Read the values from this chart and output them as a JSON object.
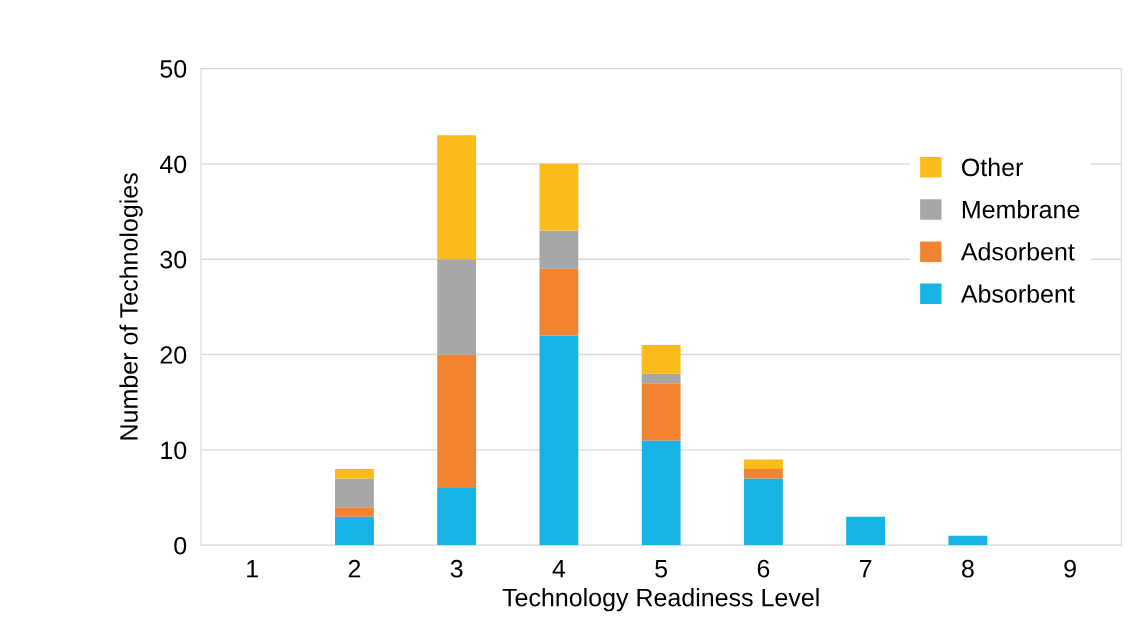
{
  "chart_data": {
    "type": "bar",
    "stacked": true,
    "xlabel": "Technology Readiness Level",
    "ylabel": "Number of Technologies",
    "categories": [
      "1",
      "2",
      "3",
      "4",
      "5",
      "6",
      "7",
      "8",
      "9"
    ],
    "series": [
      {
        "name": "Absorbent",
        "color": "#17b3e4",
        "values": [
          0,
          3,
          6,
          22,
          11,
          7,
          3,
          1,
          0
        ]
      },
      {
        "name": "Adsorbent",
        "color": "#f28431",
        "values": [
          0,
          1,
          14,
          7,
          6,
          1,
          0,
          0,
          0
        ]
      },
      {
        "name": "Membrane",
        "color": "#a6a8a8",
        "values": [
          0,
          3,
          10,
          4,
          1,
          0,
          0,
          0,
          0
        ]
      },
      {
        "name": "Other",
        "color": "#fbbb1b",
        "values": [
          0,
          1,
          13,
          7,
          3,
          1,
          0,
          0,
          0
        ]
      }
    ],
    "ylim": [
      0,
      50
    ],
    "yticks": [
      0,
      10,
      20,
      30,
      40,
      50
    ],
    "grid": "y",
    "legend": "top right"
  }
}
